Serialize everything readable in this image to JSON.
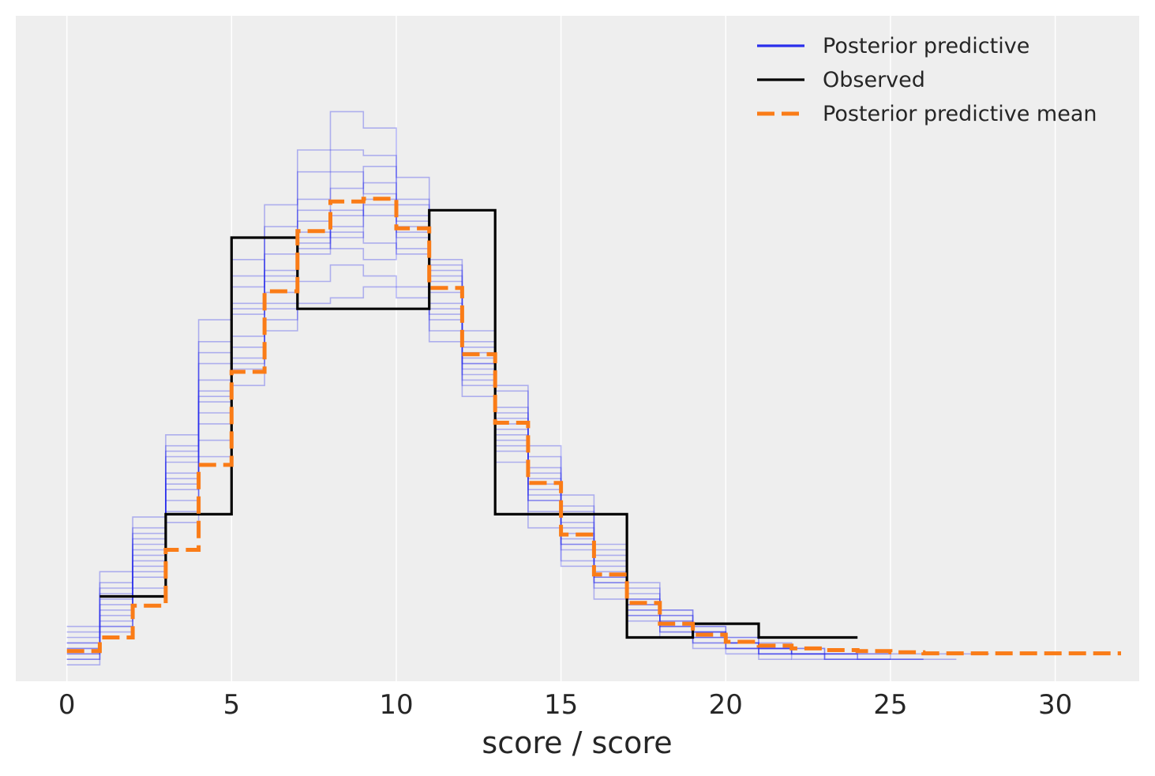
{
  "chart_data": {
    "type": "line",
    "title": "",
    "xlabel": "score / score",
    "ylabel": "",
    "xlim": [
      -1.55,
      32.55
    ],
    "ylim": [
      0,
      0.1215
    ],
    "x_ticks": [
      0,
      5,
      10,
      15,
      20,
      25,
      30
    ],
    "grid": "vertical",
    "legend_position": "top-right",
    "colors": {
      "background": "#eeeeee",
      "grid": "#ffffff",
      "posterior": "#2a2eec",
      "observed": "#000000",
      "mean": "#fa7c17"
    },
    "legend": [
      {
        "name": "Posterior predictive",
        "style": "solid",
        "color": "#2a2eec"
      },
      {
        "name": "Observed",
        "style": "solid",
        "color": "#000000"
      },
      {
        "name": "Posterior predictive mean",
        "style": "dashed",
        "color": "#fa7c17"
      }
    ],
    "observed": {
      "name": "Observed",
      "x": [
        1,
        3,
        5,
        7,
        11,
        13,
        17,
        19,
        21,
        23
      ],
      "y": [
        0.0155,
        0.0305,
        0.081,
        0.068,
        0.086,
        0.0305,
        0.008,
        0.0105,
        0.008,
        0.008
      ]
    },
    "mean": {
      "name": "Posterior predictive mean",
      "x": [
        0,
        1,
        2,
        3,
        4,
        5,
        6,
        7,
        8,
        9,
        10,
        11,
        12,
        13,
        14,
        15,
        16,
        17,
        18,
        19,
        20,
        21,
        22,
        23,
        24,
        25,
        26,
        27,
        28,
        29,
        30,
        31
      ],
      "y": [
        0.0055,
        0.008,
        0.0138,
        0.024,
        0.0395,
        0.0565,
        0.0712,
        0.0822,
        0.0876,
        0.0881,
        0.0827,
        0.0718,
        0.0597,
        0.0472,
        0.0362,
        0.0268,
        0.0195,
        0.0143,
        0.0105,
        0.0085,
        0.0072,
        0.0065,
        0.006,
        0.0057,
        0.0055,
        0.0053,
        0.0051,
        0.0051,
        0.0051,
        0.0051,
        0.0051,
        0.0051
      ]
    },
    "posterior": {
      "name": "Posterior predictive",
      "x": [
        0,
        1,
        2,
        3,
        4,
        5,
        6,
        7,
        8,
        9,
        10,
        11,
        12,
        13,
        14,
        15,
        16,
        17,
        18,
        19,
        20,
        21,
        22,
        23,
        24,
        25,
        26,
        27,
        28
      ],
      "samples": [
        [
          0.007,
          0.018,
          0.024,
          0.041,
          0.06,
          0.072,
          0.087,
          0.093,
          0.097,
          0.096,
          0.088,
          0.074,
          0.061,
          0.048,
          0.036,
          0.027,
          0.019,
          0.013,
          0.01,
          0.008,
          0.007,
          0.006,
          0.005,
          0.005
        ],
        [
          0.005,
          0.012,
          0.03,
          0.042,
          0.053,
          0.061,
          0.069,
          0.078,
          0.085,
          0.091,
          0.087,
          0.076,
          0.062,
          0.049,
          0.038,
          0.028,
          0.021,
          0.015,
          0.011,
          0.009,
          0.007,
          0.006,
          0.005
        ],
        [
          0.008,
          0.015,
          0.023,
          0.031,
          0.049,
          0.059,
          0.074,
          0.088,
          0.093,
          0.089,
          0.079,
          0.071,
          0.058,
          0.044,
          0.033,
          0.024,
          0.018,
          0.012,
          0.01,
          0.009,
          0.006,
          0.005,
          0.005,
          0.004,
          0.004
        ],
        [
          0.004,
          0.01,
          0.02,
          0.036,
          0.058,
          0.068,
          0.081,
          0.084,
          0.086,
          0.085,
          0.081,
          0.067,
          0.054,
          0.042,
          0.033,
          0.025,
          0.018,
          0.013,
          0.009,
          0.007,
          0.006,
          0.005
        ],
        [
          0.006,
          0.013,
          0.026,
          0.04,
          0.066,
          0.077,
          0.071,
          0.079,
          0.082,
          0.08,
          0.078,
          0.062,
          0.052,
          0.046,
          0.034,
          0.029,
          0.02,
          0.014,
          0.011,
          0.008,
          0.007,
          0.006,
          0.005,
          0.005,
          0.004,
          0.004
        ],
        [
          0.01,
          0.02,
          0.028,
          0.038,
          0.044,
          0.054,
          0.064,
          0.073,
          0.076,
          0.074,
          0.072,
          0.064,
          0.055,
          0.05,
          0.039,
          0.031,
          0.023,
          0.016,
          0.012,
          0.009,
          0.007,
          0.006,
          0.006,
          0.005,
          0.005,
          0.004,
          0.004
        ],
        [
          0.003,
          0.009,
          0.017,
          0.033,
          0.047,
          0.063,
          0.083,
          0.097,
          0.104,
          0.101,
          0.092,
          0.077,
          0.058,
          0.04,
          0.028,
          0.021,
          0.015,
          0.011,
          0.008,
          0.006,
          0.005,
          0.004
        ],
        [
          0.007,
          0.014,
          0.025,
          0.043,
          0.055,
          0.069,
          0.075,
          0.082,
          0.079,
          0.077,
          0.083,
          0.068,
          0.06,
          0.043,
          0.037,
          0.026,
          0.022,
          0.015,
          0.013,
          0.01,
          0.008,
          0.006,
          0.005,
          0.005,
          0.004
        ],
        [
          0.005,
          0.011,
          0.022,
          0.037,
          0.051,
          0.058,
          0.066,
          0.069,
          0.07,
          0.072,
          0.07,
          0.066,
          0.057,
          0.053,
          0.041,
          0.032,
          0.024,
          0.017,
          0.012,
          0.009,
          0.007,
          0.006,
          0.005,
          0.004
        ],
        [
          0.006,
          0.016,
          0.027,
          0.045,
          0.062,
          0.074,
          0.078,
          0.081,
          0.09,
          0.094,
          0.085,
          0.073,
          0.059,
          0.047,
          0.035,
          0.025,
          0.017,
          0.012,
          0.009,
          0.007,
          0.006,
          0.005,
          0.004
        ],
        [
          0.009,
          0.017,
          0.021,
          0.035,
          0.052,
          0.067,
          0.073,
          0.086,
          0.081,
          0.088,
          0.084,
          0.069,
          0.056,
          0.045,
          0.031,
          0.022,
          0.019,
          0.014,
          0.01,
          0.008,
          0.006,
          0.005,
          0.005,
          0.004,
          0.004,
          0.004
        ],
        [
          0.004,
          0.01,
          0.019,
          0.029,
          0.041,
          0.057,
          0.068,
          0.08,
          0.083,
          0.087,
          0.082,
          0.075,
          0.064,
          0.054,
          0.043,
          0.034,
          0.025,
          0.018,
          0.013,
          0.01,
          0.008,
          0.007,
          0.006,
          0.005,
          0.005,
          0.005,
          0.005,
          0.005
        ]
      ]
    }
  }
}
